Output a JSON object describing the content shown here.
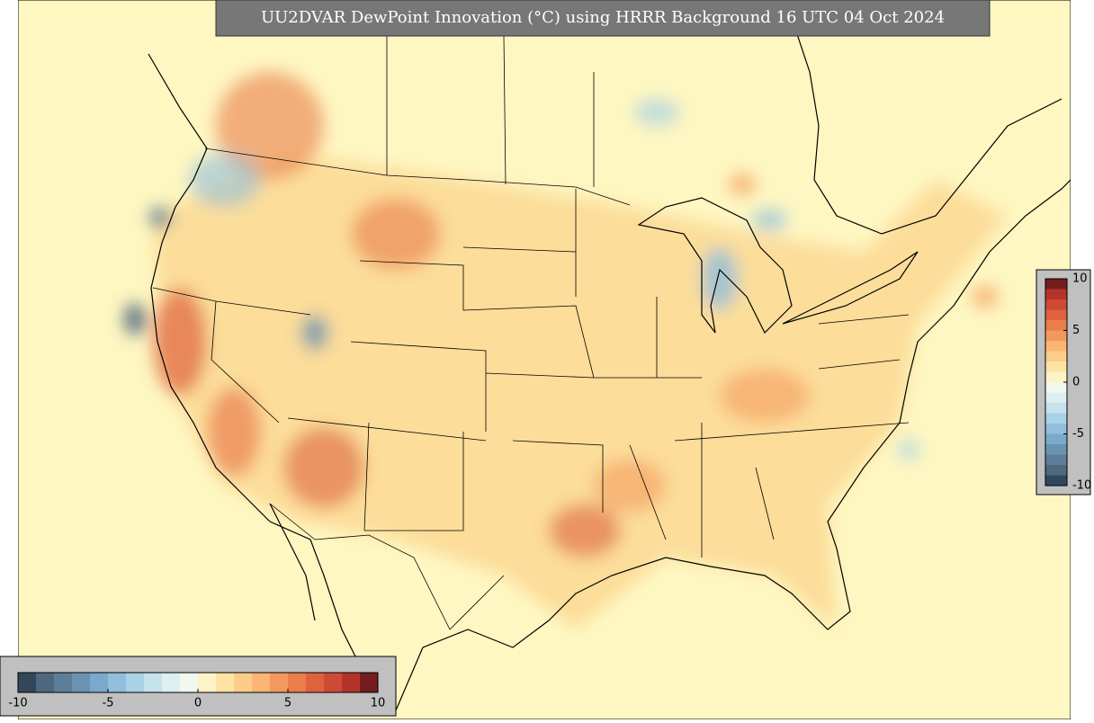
{
  "title": "UU2DVAR DewPoint Innovation (°C) using HRRR Background 16 UTC 04 Oct 2024",
  "colorbar": {
    "lim": [
      -10,
      10
    ],
    "ticks": [
      -10,
      -5,
      0,
      5,
      10
    ],
    "colors": [
      "#34475a",
      "#4f6880",
      "#5d7e98",
      "#6a93b2",
      "#79aacd",
      "#90bedb",
      "#aad2e6",
      "#c5e2ed",
      "#ddeff0",
      "#f3f8ee",
      "#fdf3c6",
      "#fde4a4",
      "#fccd88",
      "#fab572",
      "#f3995d",
      "#ea7d4a",
      "#de623e",
      "#cf4a34",
      "#b3332b",
      "#741d1f"
    ]
  }
}
